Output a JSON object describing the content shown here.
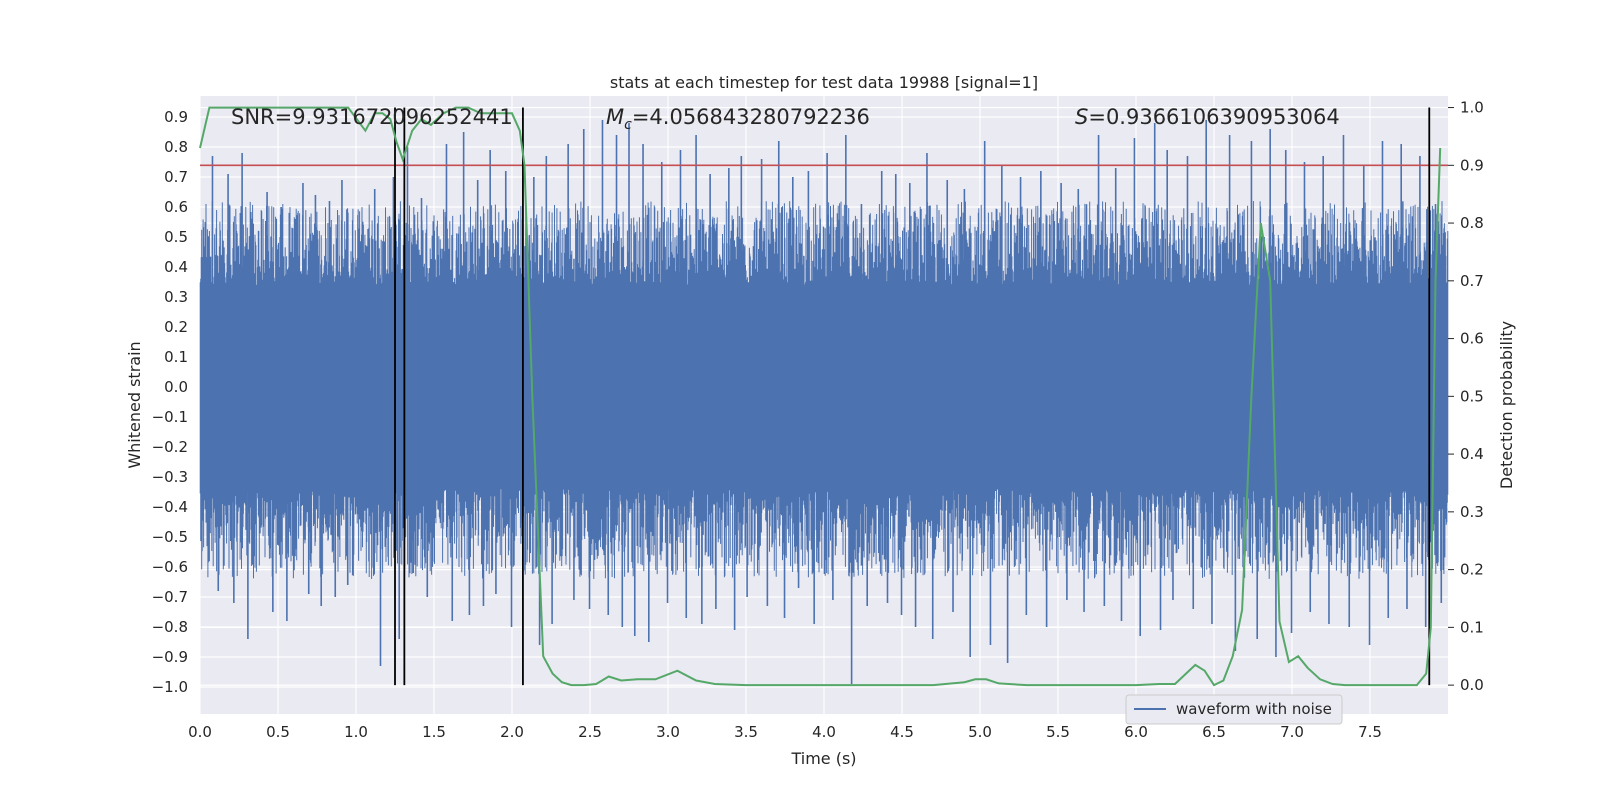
{
  "chart_data": {
    "type": "line",
    "title": "stats at each timestep for test data 19988 [signal=1]",
    "xlabel": "Time (s)",
    "ylabel": "Whitened strain",
    "ylabel_right": "Detection probability",
    "xlim": [
      0.0,
      8.0
    ],
    "ylim": [
      -1.09,
      0.97
    ],
    "ylim_right": [
      -0.05,
      1.02
    ],
    "x_ticks": [
      "0.0",
      "0.5",
      "1.0",
      "1.5",
      "2.0",
      "2.5",
      "3.0",
      "3.5",
      "4.0",
      "4.5",
      "5.0",
      "5.5",
      "6.0",
      "6.5",
      "7.0",
      "7.5"
    ],
    "y_ticks": [
      "0.9",
      "0.8",
      "0.7",
      "0.6",
      "0.5",
      "0.4",
      "0.3",
      "0.2",
      "0.1",
      "0.0",
      "−0.1",
      "−0.2",
      "−0.3",
      "−0.4",
      "−0.5",
      "−0.6",
      "−0.7",
      "−0.8",
      "−0.9",
      "−1.0"
    ],
    "y_right_ticks": [
      "1.0",
      "0.9",
      "0.8",
      "0.7",
      "0.6",
      "0.5",
      "0.4",
      "0.3",
      "0.2",
      "0.1",
      "0.0"
    ],
    "threshold": {
      "value": 0.9,
      "axis": "right",
      "color": "#c44e52"
    },
    "event_markers_x": [
      1.25,
      1.31,
      2.07,
      7.88
    ],
    "annotations": {
      "snr": "SNR=9.931672096252441",
      "mc_label": "M",
      "mc_sub": "c",
      "mc_value": "=4.056843280792236",
      "s_label": "S",
      "s_value": "=0.9366106390953064"
    },
    "legend": {
      "label": "waveform with noise",
      "location": "lower-right"
    },
    "waveform": {
      "name": "waveform with noise",
      "color": "#4c72b0",
      "description": "dense whitened strain trace, core roughly ±0.3, spikes up to ~0.9 and down to ~-0.99",
      "spikes_x": [
        0.08,
        0.18,
        0.27,
        0.43,
        0.52,
        0.66,
        0.74,
        0.83,
        0.91,
        1.12,
        1.24,
        1.33,
        1.42,
        1.58,
        1.69,
        1.78,
        1.86,
        1.96,
        2.14,
        2.22,
        2.36,
        2.46,
        2.58,
        2.67,
        2.75,
        2.84,
        2.96,
        3.08,
        3.18,
        3.27,
        3.39,
        3.47,
        3.6,
        3.71,
        3.8,
        3.9,
        4.02,
        4.14,
        4.24,
        4.37,
        4.46,
        4.55,
        4.66,
        4.79,
        4.9,
        5.03,
        5.14,
        5.26,
        5.39,
        5.52,
        5.63,
        5.76,
        5.87,
        5.99,
        6.12,
        6.2,
        6.33,
        6.45,
        6.6,
        6.74,
        6.86,
        6.96,
        7.08,
        7.2,
        7.33,
        7.46,
        7.58,
        7.7,
        7.82,
        7.92
      ],
      "spikes_top": [
        0.77,
        0.71,
        0.78,
        0.65,
        0.6,
        0.68,
        0.64,
        0.62,
        0.69,
        0.66,
        0.7,
        0.8,
        0.63,
        0.81,
        0.85,
        0.69,
        0.79,
        0.72,
        0.7,
        0.77,
        0.81,
        0.86,
        0.89,
        0.84,
        0.88,
        0.81,
        0.75,
        0.79,
        0.84,
        0.71,
        0.73,
        0.77,
        0.76,
        0.82,
        0.7,
        0.72,
        0.78,
        0.84,
        0.61,
        0.72,
        0.71,
        0.68,
        0.78,
        0.69,
        0.66,
        0.82,
        0.74,
        0.7,
        0.72,
        0.68,
        0.66,
        0.84,
        0.73,
        0.83,
        0.88,
        0.79,
        0.77,
        0.89,
        0.84,
        0.82,
        0.86,
        0.79,
        0.75,
        0.77,
        0.84,
        0.74,
        0.82,
        0.81,
        0.77,
        0.61
      ],
      "spikes_bottom": [
        -0.68,
        -0.72,
        -0.84,
        -0.75,
        -0.78,
        -0.69,
        -0.73,
        -0.7,
        -0.66,
        -0.93,
        -0.84,
        -0.62,
        -0.7,
        -0.78,
        -0.76,
        -0.73,
        -0.69,
        -0.8,
        -0.86,
        -0.79,
        -0.71,
        -0.74,
        -0.76,
        -0.8,
        -0.83,
        -0.85,
        -0.72,
        -0.77,
        -0.79,
        -0.74,
        -0.81,
        -0.7,
        -0.73,
        -0.77,
        -0.67,
        -0.79,
        -0.71,
        -0.99,
        -0.73,
        -0.72,
        -0.76,
        -0.8,
        -0.84,
        -0.75,
        -0.9,
        -0.86,
        -0.92,
        -0.76,
        -0.8,
        -0.71,
        -0.75,
        -0.73,
        -0.78,
        -0.83,
        -0.81,
        -0.71,
        -0.74,
        -0.79,
        -0.88,
        -0.84,
        -0.9,
        -0.82,
        -0.75,
        -0.79,
        -0.8,
        -0.86,
        -0.77,
        -0.74,
        -0.8,
        -0.72
      ]
    },
    "probability": {
      "name": "detection probability",
      "color": "#55a868",
      "x": [
        0.0,
        0.06,
        0.2,
        0.4,
        0.6,
        0.8,
        0.95,
        1.06,
        1.12,
        1.17,
        1.22,
        1.26,
        1.3,
        1.36,
        1.42,
        1.48,
        1.56,
        1.64,
        1.72,
        1.8,
        1.9,
        2.0,
        2.05,
        2.08,
        2.13,
        2.2,
        2.26,
        2.32,
        2.38,
        2.46,
        2.54,
        2.62,
        2.7,
        2.8,
        2.92,
        3.06,
        3.18,
        3.3,
        3.5,
        3.7,
        3.9,
        4.1,
        4.3,
        4.5,
        4.7,
        4.9,
        4.97,
        5.04,
        5.12,
        5.3,
        5.5,
        5.8,
        6.0,
        6.15,
        6.25,
        6.38,
        6.44,
        6.5,
        6.56,
        6.62,
        6.68,
        6.74,
        6.8,
        6.86,
        6.92,
        6.98,
        7.04,
        7.1,
        7.18,
        7.26,
        7.34,
        7.42,
        7.52,
        7.66,
        7.8,
        7.86,
        7.89,
        7.92,
        7.95
      ],
      "y": [
        0.93,
        1.0,
        1.0,
        1.0,
        1.0,
        1.0,
        1.0,
        0.96,
        0.99,
        0.99,
        0.98,
        0.94,
        0.91,
        0.96,
        0.98,
        0.97,
        0.99,
        1.0,
        1.0,
        0.99,
        0.99,
        0.99,
        0.96,
        0.9,
        0.5,
        0.05,
        0.02,
        0.005,
        0.0,
        0.0,
        0.002,
        0.015,
        0.008,
        0.01,
        0.01,
        0.025,
        0.008,
        0.002,
        0.0,
        0.0,
        0.0,
        0.0,
        0.0,
        0.0,
        0.0,
        0.005,
        0.01,
        0.01,
        0.003,
        0.0,
        0.0,
        0.0,
        0.0,
        0.002,
        0.002,
        0.035,
        0.025,
        0.0,
        0.008,
        0.05,
        0.13,
        0.5,
        0.8,
        0.7,
        0.11,
        0.04,
        0.05,
        0.03,
        0.01,
        0.002,
        0.0,
        0.0,
        0.0,
        0.0,
        0.0,
        0.02,
        0.1,
        0.7,
        0.93
      ]
    }
  }
}
